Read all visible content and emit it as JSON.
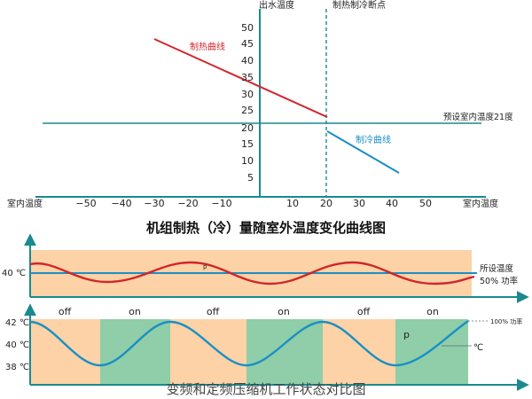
{
  "top_chart": {
    "axis_label_left": "室内温度",
    "axis_label_right": "室内温度",
    "y_axis_title": "出水温度",
    "switch_label": "制热制冷断点",
    "preset_label": "预设室内温度21度",
    "heat_label": "制热曲线",
    "cool_label": "制冷曲线",
    "x_ticks": [
      "−50",
      "−40",
      "−30",
      "−20",
      "−10",
      "10",
      "20",
      "30",
      "40",
      "50"
    ],
    "y_ticks": [
      "5",
      "10",
      "15",
      "20",
      "25",
      "30",
      "35",
      "40",
      "45",
      "50"
    ]
  },
  "title_1": "机组制热（冷）量随室外温度变化曲线图",
  "title_2": "变频和定频压缩机工作状态对比图",
  "inverter_chart": {
    "y_label": "40 ℃",
    "point_label": "p",
    "setpoint_label": "所设温度",
    "power_label": "50% 功率"
  },
  "fixed_chart": {
    "y_labels": [
      "42 ℃",
      "40 ℃",
      "38 ℃"
    ],
    "states": [
      "off",
      "on",
      "off",
      "on",
      "off",
      "on"
    ],
    "power_label": "100% 功率",
    "point_label": "p",
    "temp_label": "℃"
  },
  "chart_data": {
    "type": "line",
    "title": "机组制热（冷）量随室外温度变化曲线图",
    "xlabel": "室内温度",
    "ylabel": "出水温度",
    "xlim": [
      -60,
      60
    ],
    "ylim": [
      0,
      55
    ],
    "series": [
      {
        "name": "制热曲线",
        "x": [
          -30,
          20
        ],
        "y": [
          47,
          23
        ]
      },
      {
        "name": "制冷曲线",
        "x": [
          20,
          42
        ],
        "y": [
          19,
          6
        ]
      }
    ],
    "reference_lines": [
      {
        "label": "预设室内温度21度",
        "y": 21
      },
      {
        "label": "制热制冷断点",
        "x": 20
      }
    ],
    "colors": {
      "heat": "#d0262d",
      "cool": "#1a8fc6",
      "axis": "#1a8a8e",
      "orange": "#fcd2a6",
      "green": "#8fcea8"
    }
  }
}
